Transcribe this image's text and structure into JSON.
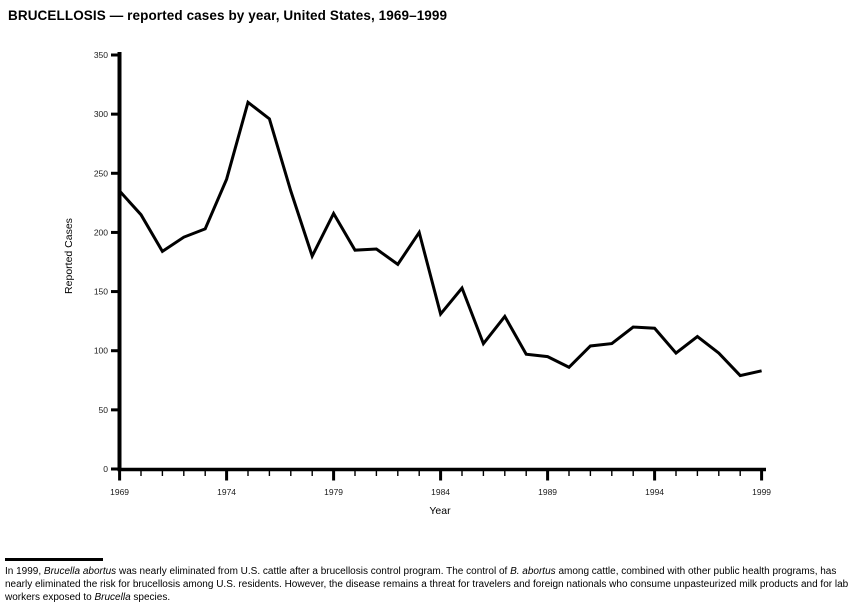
{
  "title": "BRUCELLOSIS — reported cases by year, United States, 1969–1999",
  "chart_data": {
    "type": "line",
    "title": "BRUCELLOSIS — reported cases by year, United States, 1969–1999",
    "xlabel": "Year",
    "ylabel": "Reported Cases",
    "ylim": [
      0,
      350
    ],
    "yticks": [
      0,
      50,
      100,
      150,
      200,
      250,
      300,
      350
    ],
    "xtick_labeled": [
      1969,
      1974,
      1979,
      1984,
      1989,
      1994,
      1999
    ],
    "x": [
      1969,
      1970,
      1971,
      1972,
      1973,
      1974,
      1975,
      1976,
      1977,
      1978,
      1979,
      1980,
      1981,
      1982,
      1983,
      1984,
      1985,
      1986,
      1987,
      1988,
      1989,
      1990,
      1991,
      1992,
      1993,
      1994,
      1995,
      1996,
      1997,
      1998,
      1999
    ],
    "values": [
      235,
      215,
      184,
      196,
      203,
      245,
      310,
      296,
      235,
      180,
      216,
      185,
      186,
      173,
      200,
      131,
      153,
      106,
      129,
      97,
      95,
      86,
      104,
      106,
      120,
      119,
      98,
      112,
      98,
      79,
      83
    ],
    "line_color": "#000000",
    "grid": false,
    "legend": false
  },
  "footnote": {
    "segments": [
      {
        "text": "In 1999, ",
        "italic": false
      },
      {
        "text": "Brucella abortus",
        "italic": true
      },
      {
        "text": "was nearly eliminated from U.S. cattle after a brucellosis control program. The control of ",
        "italic": false
      },
      {
        "text": "B. abortus",
        "italic": true
      },
      {
        "text": "among cattle, combined with other public health programs, has nearly eliminated the risk for brucellosis among U.S. residents. However, the disease remains a threat for travelers and foreign nationals who consume unpasteurized milk products and for lab workers exposed to ",
        "italic": false
      },
      {
        "text": "Brucella",
        "italic": true
      },
      {
        "text": "species.",
        "italic": false
      }
    ]
  }
}
